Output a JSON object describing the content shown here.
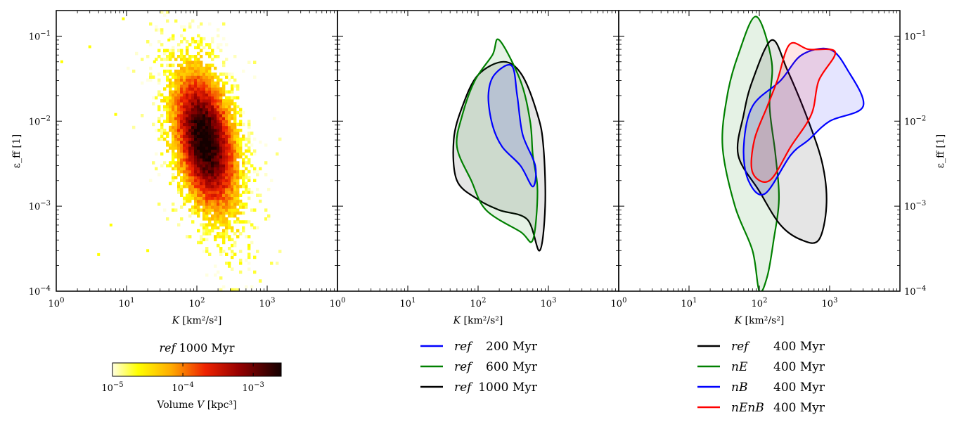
{
  "chart_data": [
    {
      "type": "heatmap",
      "panel": "left",
      "xlabel": "K [km²/s²]",
      "ylabel": "ε_ff [1]",
      "xscale": "log",
      "yscale": "log",
      "xlim": [
        1,
        10000
      ],
      "ylim": [
        0.0001,
        0.2
      ],
      "x_ticks": [
        "10^0",
        "10^1",
        "10^2",
        "10^3"
      ],
      "y_ticks": [
        "10^-4",
        "10^-3",
        "10^-2",
        "10^-1"
      ],
      "colorbar": {
        "title_italic": "ref",
        "title_rest": "1000 Myr",
        "label": "Volume V [kpc³]",
        "range": [
          1e-05,
          0.0025
        ],
        "ticks": [
          "10^-5",
          "10^-4",
          "10^-3"
        ],
        "colormap": "hot_r"
      },
      "density_summary": {
        "peak_K": 130,
        "peak_eff": 0.006,
        "sigma_logK": 0.3,
        "sigma_logeff": 0.55,
        "correlation": -0.35
      }
    },
    {
      "type": "contour",
      "panel": "middle",
      "xlabel": "K [km²/s²]",
      "xscale": "log",
      "yscale": "log",
      "xlim": [
        1,
        10000
      ],
      "ylim": [
        0.0001,
        0.2
      ],
      "x_ticks": [
        "10^0",
        "10^1",
        "10^2",
        "10^3"
      ],
      "series": [
        {
          "name": "ref",
          "time": "200 Myr",
          "color": "#0000ff",
          "contour": [
            [
              170,
              0.035
            ],
            [
              300,
              0.045
            ],
            [
              360,
              0.02
            ],
            [
              430,
              0.007
            ],
            [
              650,
              0.003
            ],
            [
              600,
              0.0017
            ],
            [
              400,
              0.003
            ],
            [
              220,
              0.005
            ],
            [
              160,
              0.009
            ],
            [
              140,
              0.02
            ]
          ]
        },
        {
          "name": "ref",
          "time": "600 Myr",
          "color": "#008000",
          "contour": [
            [
              200,
              0.09
            ],
            [
              400,
              0.03
            ],
            [
              550,
              0.01
            ],
            [
              600,
              0.004
            ],
            [
              700,
              0.0015
            ],
            [
              600,
              0.0004
            ],
            [
              400,
              0.0005
            ],
            [
              130,
              0.0009
            ],
            [
              80,
              0.002
            ],
            [
              50,
              0.005
            ],
            [
              60,
              0.012
            ],
            [
              90,
              0.03
            ],
            [
              160,
              0.06
            ]
          ]
        },
        {
          "name": "ref",
          "time": "1000 Myr",
          "color": "#000000",
          "contour": [
            [
              230,
              0.05
            ],
            [
              420,
              0.035
            ],
            [
              700,
              0.012
            ],
            [
              850,
              0.005
            ],
            [
              900,
              0.001
            ],
            [
              750,
              0.0003
            ],
            [
              500,
              0.0007
            ],
            [
              200,
              0.0009
            ],
            [
              100,
              0.0012
            ],
            [
              50,
              0.002
            ],
            [
              45,
              0.006
            ],
            [
              60,
              0.015
            ],
            [
              100,
              0.035
            ]
          ]
        }
      ],
      "legend": {
        "location": "below"
      }
    },
    {
      "type": "contour",
      "panel": "right",
      "xlabel": "K [km²/s²]",
      "ylabel": "ε_ff [1]",
      "xscale": "log",
      "yscale": "log",
      "xlim": [
        1,
        10000
      ],
      "ylim": [
        0.0001,
        0.2
      ],
      "x_ticks": [
        "10^0",
        "10^1",
        "10^2",
        "10^3"
      ],
      "y_ticks": [
        "10^-4",
        "10^-3",
        "10^-2",
        "10^-1"
      ],
      "series": [
        {
          "name": "ref",
          "time": "400 Myr",
          "color": "#000000",
          "contour": [
            [
              80,
              0.03
            ],
            [
              150,
              0.09
            ],
            [
              250,
              0.04
            ],
            [
              500,
              0.01
            ],
            [
              800,
              0.003
            ],
            [
              900,
              0.001
            ],
            [
              700,
              0.0004
            ],
            [
              400,
              0.0004
            ],
            [
              200,
              0.0006
            ],
            [
              100,
              0.0015
            ],
            [
              50,
              0.004
            ],
            [
              60,
              0.012
            ]
          ]
        },
        {
          "name": "nE",
          "time": "400 Myr",
          "color": "#008000",
          "contour": [
            [
              90,
              0.17
            ],
            [
              150,
              0.05
            ],
            [
              140,
              0.015
            ],
            [
              170,
              0.004
            ],
            [
              190,
              0.0012
            ],
            [
              160,
              0.0004
            ],
            [
              130,
              0.00015
            ],
            [
              100,
              0.0001
            ],
            [
              80,
              0.0003
            ],
            [
              45,
              0.001
            ],
            [
              30,
              0.005
            ],
            [
              35,
              0.02
            ],
            [
              50,
              0.06
            ]
          ]
        },
        {
          "name": "nB",
          "time": "400 Myr",
          "color": "#0000ff",
          "contour": [
            [
              200,
              0.03
            ],
            [
              400,
              0.06
            ],
            [
              1000,
              0.07
            ],
            [
              1800,
              0.04
            ],
            [
              3000,
              0.015
            ],
            [
              1000,
              0.01
            ],
            [
              500,
              0.006
            ],
            [
              280,
              0.004
            ],
            [
              120,
              0.0014
            ],
            [
              70,
              0.002
            ],
            [
              60,
              0.005
            ],
            [
              80,
              0.015
            ]
          ]
        },
        {
          "name": "nEnB",
          "time": "400 Myr",
          "color": "#ff0000",
          "contour": [
            [
              270,
              0.08
            ],
            [
              500,
              0.07
            ],
            [
              1200,
              0.065
            ],
            [
              700,
              0.03
            ],
            [
              550,
              0.012
            ],
            [
              280,
              0.005
            ],
            [
              140,
              0.002
            ],
            [
              80,
              0.0025
            ],
            [
              85,
              0.006
            ],
            [
              130,
              0.015
            ],
            [
              180,
              0.03
            ]
          ]
        }
      ],
      "legend": {
        "location": "below"
      }
    }
  ]
}
